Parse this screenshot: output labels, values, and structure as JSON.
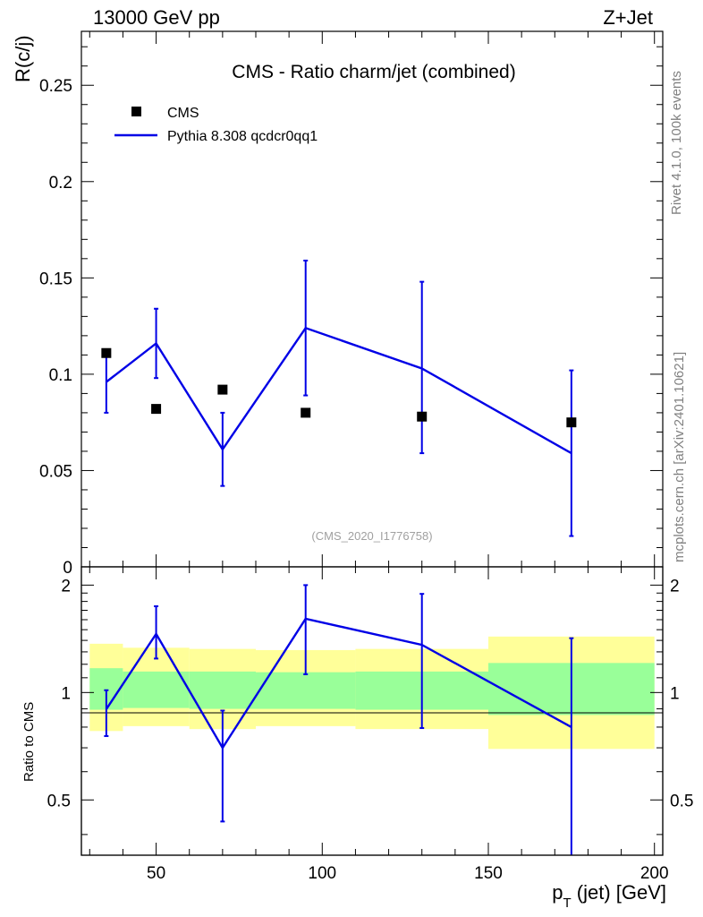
{
  "header": {
    "beam": "13000 GeV pp",
    "process": "Z+Jet",
    "title": "CMS - Ratio charm/jet (combined)",
    "analysis_id": "(CMS_2020_I1776758)",
    "side_top": "Rivet 4.1.0,  100k events",
    "side_bottom": "mcplots.cern.ch [arXiv:2401.10621]"
  },
  "legend": {
    "data_label": "CMS",
    "mc_label": "Pythia 8.308 qcdcr0qq1"
  },
  "colors": {
    "mc": "#0000e6",
    "data": "#000000",
    "band_outer": "#ffff99",
    "band_inner": "#99ff99"
  },
  "chart_data": [
    {
      "type": "scatter",
      "panel": "main",
      "ylabel": "R(c/j)",
      "xlim": [
        27.5,
        202.5
      ],
      "ylim": [
        0,
        0.278
      ],
      "y_ticks": [
        0,
        0.05,
        0.1,
        0.15,
        0.2,
        0.25
      ],
      "y_tick_labels": [
        "0",
        "0.05",
        "0.1",
        "0.15",
        "0.2",
        "0.25"
      ],
      "series": [
        {
          "name": "CMS",
          "x": [
            35,
            50,
            70,
            95,
            130,
            175
          ],
          "values": [
            0.111,
            0.082,
            0.092,
            0.08,
            0.078,
            0.075
          ]
        },
        {
          "name": "Pythia 8.308 qcdcr0qq1",
          "x": [
            35,
            50,
            70,
            95,
            130,
            175
          ],
          "values": [
            0.096,
            0.116,
            0.061,
            0.124,
            0.103,
            0.059
          ],
          "err_low": [
            0.08,
            0.098,
            0.042,
            0.089,
            0.059,
            0.016
          ],
          "err_high": [
            0.112,
            0.134,
            0.08,
            0.159,
            0.148,
            0.102
          ]
        }
      ]
    },
    {
      "type": "line",
      "panel": "ratio",
      "ylabel": "Ratio to CMS",
      "xlabel": "p_T (jet) [GeV]",
      "xlim": [
        27.5,
        202.5
      ],
      "ylim": [
        0.35,
        2.25
      ],
      "y_ticks": [
        0.5,
        1,
        2
      ],
      "y_tick_labels": [
        "0.5",
        "1",
        "2"
      ],
      "x_ticks": [
        50,
        100,
        150,
        200
      ],
      "x_tick_labels": [
        "50",
        "100",
        "150",
        "200"
      ],
      "bins": [
        [
          30,
          40
        ],
        [
          40,
          60
        ],
        [
          60,
          80
        ],
        [
          80,
          110
        ],
        [
          110,
          150
        ],
        [
          150,
          200
        ]
      ],
      "band_inner": [
        [
          0.895,
          1.17
        ],
        [
          0.905,
          1.145
        ],
        [
          0.9,
          1.145
        ],
        [
          0.9,
          1.14
        ],
        [
          0.895,
          1.145
        ],
        [
          0.865,
          1.21
        ]
      ],
      "band_outer": [
        [
          0.78,
          1.37
        ],
        [
          0.805,
          1.335
        ],
        [
          0.79,
          1.325
        ],
        [
          0.805,
          1.315
        ],
        [
          0.79,
          1.325
        ],
        [
          0.695,
          1.435
        ]
      ],
      "series": [
        {
          "name": "Pythia 8.308 qcdcr0qq1 / CMS",
          "x": [
            35,
            50,
            70,
            95,
            130,
            175
          ],
          "values": [
            0.898,
            1.46,
            0.7,
            1.61,
            1.36,
            0.8
          ],
          "err_low": [
            0.755,
            1.245,
            0.435,
            1.125,
            0.795,
            0.33
          ],
          "err_high": [
            1.015,
            1.745,
            0.89,
            2.0,
            1.89,
            1.42
          ]
        }
      ]
    }
  ]
}
